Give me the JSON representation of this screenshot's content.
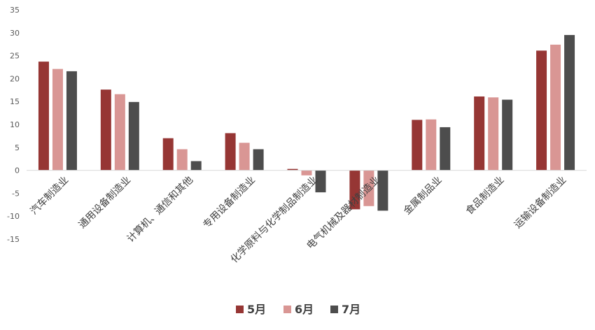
{
  "chart_data": {
    "type": "bar",
    "title": "",
    "xlabel": "",
    "ylabel": "",
    "ylim": [
      -15,
      35
    ],
    "yticks": [
      -15,
      -10,
      -5,
      0,
      5,
      10,
      15,
      20,
      25,
      30,
      35
    ],
    "grid": false,
    "legend_position": "bottom",
    "categories": [
      "汽车制造业",
      "通用设备制造业",
      "计算机、通信和其他",
      "专用设备制造业",
      "化学原料与化学制品制造业",
      "电气机械及器材制造业",
      "金属制品业",
      "食品制造业",
      "运输设备制造业"
    ],
    "series": [
      {
        "name": "5月",
        "color": "#963634",
        "values": [
          23.7,
          17.6,
          7.0,
          8.1,
          0.3,
          -8.5,
          11.0,
          16.1,
          26.1
        ]
      },
      {
        "name": "6月",
        "color": "#d99694",
        "values": [
          22.1,
          16.6,
          4.6,
          6.0,
          -1.1,
          -7.8,
          11.1,
          15.9,
          27.4
        ]
      },
      {
        "name": "7月",
        "color": "#4d4d4d",
        "values": [
          21.6,
          14.9,
          2.0,
          4.6,
          -4.8,
          -8.8,
          9.4,
          15.4,
          29.5
        ]
      }
    ]
  }
}
